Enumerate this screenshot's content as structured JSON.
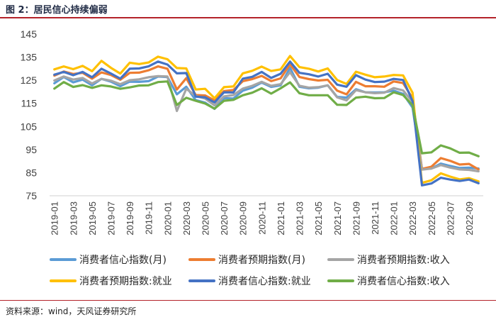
{
  "figure": {
    "title": "图 2：居民信心持续偏弱",
    "source": "资料来源：wind，天风证券研究所"
  },
  "chart_data": {
    "type": "line",
    "title": "居民信心持续偏弱",
    "xlabel": "",
    "ylabel": "",
    "ylim": [
      75,
      145
    ],
    "yticks": [
      75,
      85,
      95,
      105,
      115,
      125,
      135,
      145
    ],
    "grid": false,
    "legend_position": "bottom",
    "x_start": "2019-01",
    "x_tick_labels": [
      "2019-01",
      "2019-03",
      "2019-05",
      "2019-07",
      "2019-09",
      "2019-11",
      "2020-01",
      "2020-03",
      "2020-05",
      "2020-07",
      "2020-09",
      "2020-11",
      "2021-01",
      "2021-03",
      "2021-05",
      "2021-07",
      "2021-09",
      "2021-11",
      "2022-01",
      "2022-03",
      "2022-05",
      "2022-07",
      "2022-09"
    ],
    "series": [
      {
        "name": "消费者信心指数(月)",
        "color": "#5b9bd5",
        "values": [
          123.7,
          126.4,
          124.1,
          125.3,
          122.8,
          125.6,
          124.4,
          122.4,
          124.4,
          124.3,
          124.6,
          126.6,
          126.4,
          118.9,
          122.2,
          116.4,
          115.3,
          112.6,
          117.2,
          117.1,
          120.5,
          121.8,
          124.0,
          122.1,
          122.8,
          130.4,
          122.2,
          121.5,
          121.8,
          122.8,
          117.8,
          117.5,
          121.1,
          119.8,
          119.7,
          119.8,
          120.5,
          119.1,
          113.2,
          86.7,
          86.8,
          88.9,
          87.9,
          87.0,
          87.2,
          86.8
        ]
      },
      {
        "name": "消费者预期指数(月)",
        "color": "#ed7d31",
        "values": [
          127.0,
          128.8,
          127.7,
          128.2,
          125.7,
          128.4,
          127.3,
          125.2,
          128.2,
          128.3,
          129.3,
          131.0,
          130.0,
          121.0,
          125.9,
          118.6,
          118.4,
          116.3,
          120.3,
          120.8,
          124.6,
          125.5,
          126.9,
          124.6,
          125.8,
          131.9,
          126.4,
          125.5,
          124.9,
          125.2,
          120.5,
          118.9,
          124.3,
          122.4,
          122.4,
          122.2,
          124.5,
          123.8,
          117.2,
          86.6,
          87.6,
          91.3,
          90.1,
          88.5,
          88.8,
          86.4
        ]
      },
      {
        "name": "消费者预期指数:收入",
        "color": "#a5a5a5",
        "values": [
          124.9,
          126.6,
          125.3,
          126.0,
          123.6,
          125.6,
          124.8,
          123.3,
          125.0,
          125.4,
          126.3,
          126.8,
          126.6,
          111.7,
          121.3,
          118.2,
          117.1,
          114.1,
          118.0,
          118.6,
          121.4,
          122.6,
          124.3,
          122.6,
          123.3,
          128.5,
          122.6,
          121.8,
          122.0,
          122.8,
          117.6,
          116.3,
          120.7,
          119.8,
          119.4,
          119.6,
          121.6,
          120.6,
          115.6,
          86.3,
          86.8,
          88.3,
          87.2,
          86.4,
          86.2,
          85.6
        ]
      },
      {
        "name": "消费者预期指数:就业",
        "color": "#ffc000",
        "values": [
          129.7,
          131.0,
          129.8,
          131.2,
          128.9,
          133.4,
          130.4,
          127.9,
          132.6,
          132.0,
          132.7,
          135.2,
          134.1,
          130.3,
          130.1,
          121.0,
          121.3,
          117.2,
          122.0,
          122.3,
          128.0,
          129.1,
          130.9,
          129.0,
          129.7,
          135.5,
          130.7,
          130.0,
          128.8,
          130.1,
          125.1,
          123.4,
          128.7,
          127.4,
          126.3,
          126.6,
          127.3,
          127.1,
          119.6,
          80.6,
          81.7,
          84.7,
          83.3,
          82.1,
          82.6,
          81.2
        ]
      },
      {
        "name": "消费者信心指数:就业",
        "color": "#4472c4",
        "values": [
          127.4,
          128.6,
          127.2,
          128.6,
          126.3,
          130.0,
          127.9,
          125.7,
          130.0,
          130.1,
          131.0,
          133.1,
          131.8,
          128.0,
          128.1,
          117.9,
          117.6,
          115.4,
          119.8,
          119.7,
          125.7,
          126.5,
          128.6,
          126.0,
          127.8,
          133.1,
          128.2,
          127.6,
          126.6,
          127.8,
          123.1,
          122.2,
          127.2,
          125.3,
          124.2,
          124.4,
          125.6,
          125.1,
          116.0,
          79.5,
          80.3,
          82.8,
          82.0,
          81.4,
          82.0,
          80.4
        ]
      },
      {
        "name": "消费者信心指数:收入",
        "color": "#70ad47",
        "values": [
          121.4,
          124.2,
          122.1,
          122.9,
          121.7,
          122.8,
          122.3,
          121.3,
          121.9,
          122.7,
          122.8,
          124.2,
          124.5,
          114.3,
          117.4,
          116.1,
          114.9,
          112.7,
          116.1,
          116.5,
          118.5,
          119.6,
          121.5,
          119.2,
          121.5,
          124.1,
          119.4,
          118.5,
          118.5,
          118.5,
          114.4,
          114.3,
          117.5,
          117.9,
          117.2,
          117.3,
          119.8,
          118.6,
          114.2,
          93.4,
          93.8,
          96.8,
          95.5,
          93.6,
          93.7,
          92.1
        ]
      }
    ]
  }
}
